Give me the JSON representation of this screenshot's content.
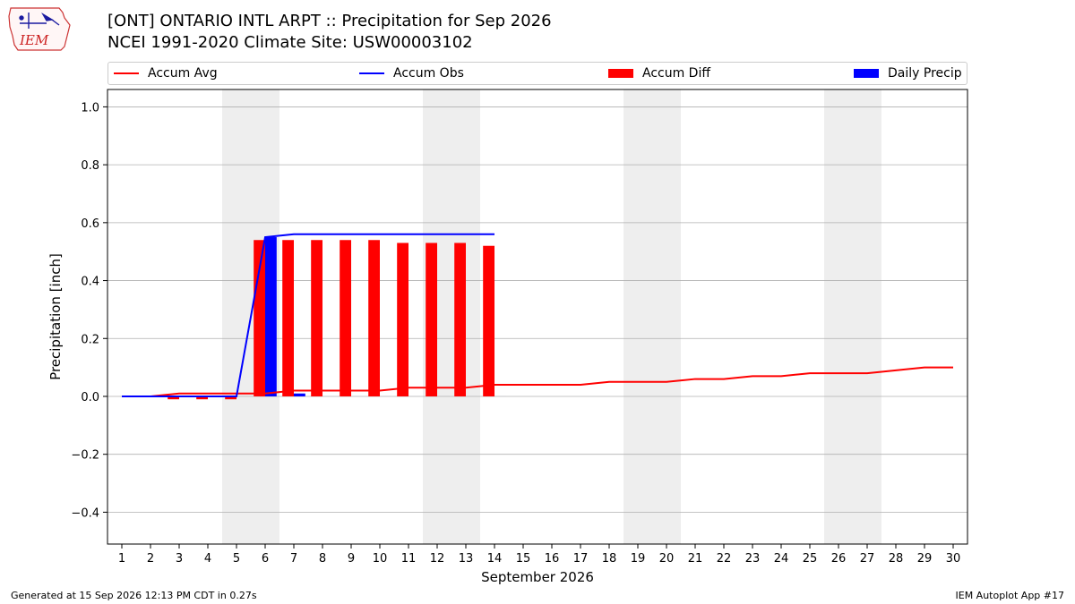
{
  "logo": {
    "text": "IEM"
  },
  "title": "[ONT] ONTARIO INTL ARPT :: Precipitation for Sep 2026",
  "subtitle": "NCEI 1991-2020 Climate Site: USW00003102",
  "legend": [
    "Accum Avg",
    "Accum Obs",
    "Accum Diff",
    "Daily Precip"
  ],
  "footer": {
    "left": "Generated at 15 Sep 2026 12:13 PM CDT in 0.27s",
    "right": "IEM Autoplot App #17"
  },
  "colors": {
    "avg": "#ff0000",
    "obs": "#0000ff",
    "diff": "#ff0000",
    "daily": "#0000ff",
    "weekend": "#eeeeee"
  },
  "chart_data": {
    "type": "bar",
    "xlabel": "September 2026",
    "ylabel": "Precipitation [inch]",
    "ylim": [
      -0.51,
      1.06
    ],
    "yticks": [
      -0.4,
      -0.2,
      0.0,
      0.2,
      0.4,
      0.6,
      0.8,
      1.0
    ],
    "ytick_labels": [
      "−0.4",
      "−0.2",
      "0.0",
      "0.2",
      "0.4",
      "0.6",
      "0.8",
      "1.0"
    ],
    "xlim": [
      0.5,
      30.5
    ],
    "x": [
      1,
      2,
      3,
      4,
      5,
      6,
      7,
      8,
      9,
      10,
      11,
      12,
      13,
      14,
      15,
      16,
      17,
      18,
      19,
      20,
      21,
      22,
      23,
      24,
      25,
      26,
      27,
      28,
      29,
      30
    ],
    "weekend_bands": [
      [
        4.5,
        6.5
      ],
      [
        11.5,
        13.5
      ],
      [
        18.5,
        20.5
      ],
      [
        25.5,
        27.5
      ]
    ],
    "grid": true,
    "legend_position": "top",
    "series": [
      {
        "name": "Accum Avg",
        "type": "line",
        "x": [
          1,
          2,
          3,
          4,
          5,
          6,
          7,
          8,
          9,
          10,
          11,
          12,
          13,
          14,
          15,
          16,
          17,
          18,
          19,
          20,
          21,
          22,
          23,
          24,
          25,
          26,
          27,
          28,
          29,
          30
        ],
        "values": [
          0.0,
          0.0,
          0.01,
          0.01,
          0.01,
          0.01,
          0.02,
          0.02,
          0.02,
          0.02,
          0.03,
          0.03,
          0.03,
          0.04,
          0.04,
          0.04,
          0.04,
          0.05,
          0.05,
          0.05,
          0.06,
          0.06,
          0.07,
          0.07,
          0.08,
          0.08,
          0.08,
          0.09,
          0.1,
          0.1
        ]
      },
      {
        "name": "Accum Obs",
        "type": "line",
        "x": [
          1,
          2,
          3,
          4,
          5,
          6,
          7,
          8,
          9,
          10,
          11,
          12,
          13,
          14
        ],
        "values": [
          0.0,
          0.0,
          0.0,
          0.0,
          0.0,
          0.55,
          0.56,
          0.56,
          0.56,
          0.56,
          0.56,
          0.56,
          0.56,
          0.56
        ]
      },
      {
        "name": "Accum Diff",
        "type": "bar",
        "x": [
          1,
          2,
          3,
          4,
          5,
          6,
          7,
          8,
          9,
          10,
          11,
          12,
          13,
          14
        ],
        "values": [
          0.0,
          0.0,
          -0.01,
          -0.01,
          -0.01,
          0.54,
          0.54,
          0.54,
          0.54,
          0.54,
          0.53,
          0.53,
          0.53,
          0.52
        ]
      },
      {
        "name": "Daily Precip",
        "type": "bar",
        "x": [
          1,
          2,
          3,
          4,
          5,
          6,
          7,
          8,
          9,
          10,
          11,
          12,
          13,
          14
        ],
        "values": [
          0.0,
          0.0,
          0.0,
          0.0,
          0.0,
          0.55,
          0.01,
          0.0,
          0.0,
          0.0,
          0.0,
          0.0,
          0.0,
          0.0
        ]
      }
    ]
  }
}
